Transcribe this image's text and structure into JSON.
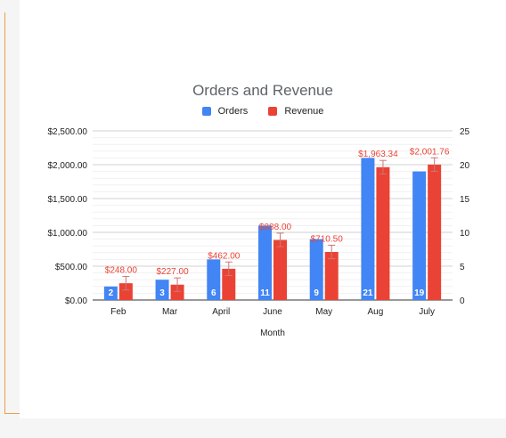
{
  "chart_data": {
    "type": "bar",
    "title": "Orders and Revenue",
    "xlabel": "Month",
    "categories": [
      "Feb",
      "Mar",
      "April",
      "June",
      "May",
      "Aug",
      "July"
    ],
    "series": [
      {
        "name": "Orders",
        "axis": "right",
        "color": "#4285f4",
        "values": [
          2,
          3,
          6,
          11,
          9,
          21,
          19
        ],
        "data_labels": [
          "2",
          "3",
          "6",
          "11",
          "9",
          "21",
          "19"
        ]
      },
      {
        "name": "Revenue",
        "axis": "left",
        "color": "#ea4335",
        "values": [
          248.0,
          227.0,
          462.0,
          888.0,
          710.5,
          1963.34,
          2001.76
        ],
        "data_labels": [
          "$248.00",
          "$227.00",
          "$462.00",
          "$888.00",
          "$710.50",
          "$1,963.34",
          "$2,001.76"
        ],
        "error_bars": true
      }
    ],
    "y_left": {
      "ylim": [
        0,
        2500
      ],
      "ticks": [
        0,
        500,
        1000,
        1500,
        2000,
        2500
      ],
      "tick_labels": [
        "$0.00",
        "$500.00",
        "$1,000.00",
        "$1,500.00",
        "$2,000.00",
        "$2,500.00"
      ]
    },
    "y_right": {
      "ylim": [
        0,
        25
      ],
      "ticks": [
        0,
        5,
        10,
        15,
        20,
        25
      ],
      "tick_labels": [
        "0",
        "5",
        "10",
        "15",
        "20",
        "25"
      ]
    },
    "grid": true,
    "legend_position": "top"
  }
}
